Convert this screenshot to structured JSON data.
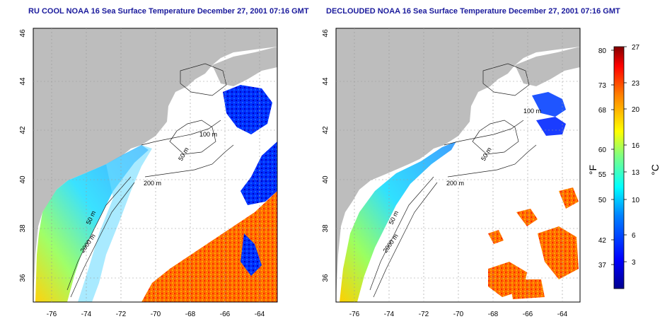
{
  "panels": [
    {
      "title": "RU COOL NOAA 16 Sea Surface Temperature December 27, 2001 07:16 GMT",
      "x_ticks": [
        "-76",
        "-74",
        "-72",
        "-70",
        "-68",
        "-66",
        "-64"
      ],
      "y_ticks": [
        "36",
        "38",
        "40",
        "42",
        "44",
        "46"
      ],
      "contour_labels": [
        "50 m",
        "100 m",
        "200 m",
        "50 m",
        "2000 m"
      ]
    },
    {
      "title": "DECLOUDED NOAA 16 Sea Surface Temperature December 27, 2001 07:16 GMT",
      "x_ticks": [
        "-76",
        "-74",
        "-72",
        "-70",
        "-68",
        "-66",
        "-64"
      ],
      "y_ticks": [
        "36",
        "38",
        "40",
        "42",
        "44",
        "46"
      ],
      "contour_labels": [
        "50 m",
        "100 m",
        "200 m",
        "50 m",
        "2000 m"
      ]
    }
  ],
  "colorbar": {
    "f_unit": "°F",
    "c_unit": "°C",
    "f_ticks": [
      "80",
      "73",
      "68",
      "60",
      "55",
      "50",
      "42",
      "37"
    ],
    "c_ticks": [
      "27",
      "23",
      "20",
      "16",
      "13",
      "10",
      "6",
      "3"
    ],
    "colors": [
      "#00008f",
      "#0000ff",
      "#0080ff",
      "#00ffff",
      "#80ff80",
      "#ffff00",
      "#ff8000",
      "#ff0000",
      "#800000"
    ]
  },
  "colors": {
    "land": "#bdbdbd",
    "cloud": "#ffffff",
    "title": "#1a1a9c"
  }
}
